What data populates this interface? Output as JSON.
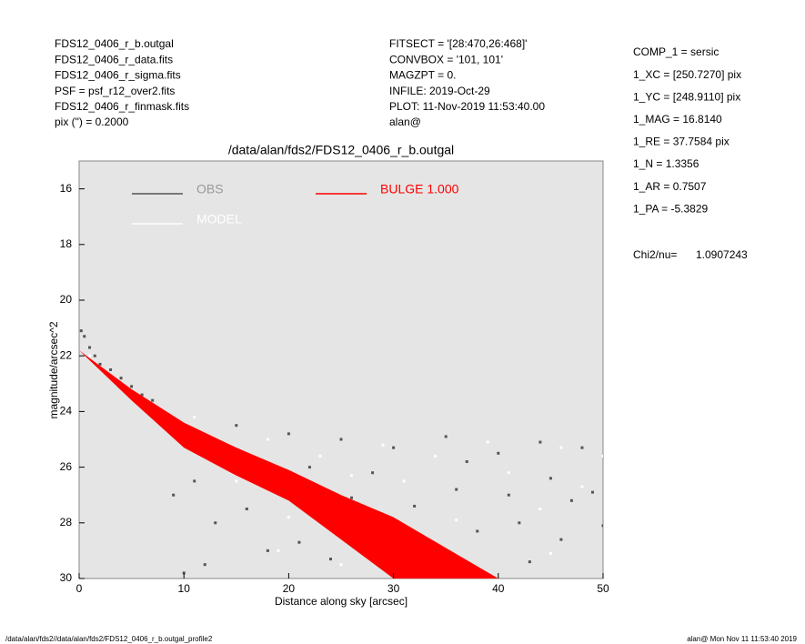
{
  "header": {
    "left": [
      "FDS12_0406_r_b.outgal",
      "FDS12_0406_r_data.fits",
      "FDS12_0406_r_sigma.fits",
      "PSF    = psf_r12_over2.fits",
      "FDS12_0406_r_finmask.fits",
      "pix (\") =  0.2000"
    ],
    "middle": [
      "FITSECT = '[28:470,26:468]'",
      "CONVBOX = '101, 101'",
      "MAGZPT  =              0.",
      "INFILE: 2019-Oct-29",
      "PLOT: 11-Nov-2019 11:53:40.00",
      "alan@"
    ],
    "right": [
      "COMP_1  = sersic",
      "1_XC    = [250.7270] pix",
      "1_YC    = [248.9110] pix",
      "1_MAG   = 16.8140",
      "1_RE    = 37.7584 pix",
      "1_N     = 1.3356",
      "1_AR    = 0.7507",
      "1_PA    = -5.3829"
    ],
    "chi_label": "Chi2/nu=",
    "chi_value": "1.0907243"
  },
  "footer": {
    "left": "/data/alan/fds2//data/alan/fds2/FDS12_0406_r_b.outgal_profile2",
    "right": "alan@  Mon Nov 11 11:53:40 2019"
  },
  "chart_data": {
    "type": "scatter",
    "title": "/data/alan/fds2/FDS12_0406_r_b.outgal",
    "x_label": "Distance along sky [arcsec]",
    "y_label": "magnitude/arcsec^2",
    "xlim": [
      0,
      50
    ],
    "xticks": [
      0,
      10,
      20,
      30,
      40,
      50
    ],
    "ylim": [
      15,
      30
    ],
    "yticks": [
      16,
      18,
      20,
      22,
      24,
      26,
      28,
      30
    ],
    "y_inverted": true,
    "background": "#e5e5e5",
    "series": [
      {
        "name": "OBS",
        "color": "#555555",
        "x": [
          0.2,
          0.5,
          1,
          1.5,
          2,
          3,
          4,
          5,
          6,
          7,
          8,
          9,
          10,
          12,
          14,
          11,
          13,
          12,
          15,
          16,
          18,
          20,
          22,
          24,
          25,
          27,
          28,
          30,
          32,
          33,
          35,
          36,
          38,
          40,
          41,
          43,
          44,
          45,
          46,
          47,
          48,
          49,
          50,
          9,
          10,
          17,
          21,
          26,
          31,
          37,
          42
        ],
        "values": [
          21.1,
          21.3,
          21.7,
          22.0,
          22.3,
          22.5,
          22.8,
          23.1,
          23.4,
          23.6,
          24.0,
          24.3,
          24.5,
          25.1,
          25.6,
          26.5,
          28.0,
          29.5,
          24.5,
          27.5,
          29.0,
          24.8,
          26.0,
          29.3,
          25.0,
          28.0,
          26.2,
          25.3,
          27.4,
          29.1,
          24.9,
          26.8,
          28.3,
          25.5,
          27.0,
          29.4,
          25.1,
          26.4,
          28.6,
          27.2,
          25.3,
          26.9,
          28.1,
          27.0,
          29.8,
          25.7,
          28.7,
          27.1,
          29.6,
          25.8,
          28.0
        ]
      },
      {
        "name": "MODEL",
        "color": "#ffffff",
        "x": [
          1,
          3,
          5,
          7,
          9,
          11,
          13,
          15,
          18,
          20,
          23,
          26,
          29,
          31,
          34,
          36,
          39,
          41,
          44,
          46,
          48,
          50,
          19,
          25,
          33,
          45
        ],
        "values": [
          22.0,
          22.8,
          23.3,
          23.9,
          24.4,
          24.2,
          25.6,
          26.5,
          25.0,
          27.8,
          25.6,
          26.3,
          25.2,
          26.5,
          25.6,
          27.9,
          25.1,
          26.2,
          27.5,
          25.3,
          26.7,
          25.6,
          29.0,
          29.5,
          28.5,
          29.1
        ]
      },
      {
        "name": "BULGE  1.000",
        "color": "#ff0000",
        "band": true,
        "x": [
          0,
          5,
          10,
          15,
          20,
          25,
          30,
          35,
          40
        ],
        "values": [
          21.8,
          23.2,
          24.4,
          25.3,
          26.1,
          27.0,
          27.8,
          28.9,
          30.0
        ],
        "lower": [
          21.8,
          23.6,
          25.3,
          26.3,
          27.2,
          28.6,
          30.0,
          31.4,
          32.8
        ]
      }
    ]
  }
}
